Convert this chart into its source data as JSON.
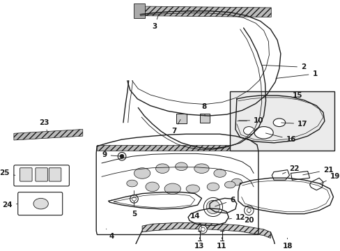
{
  "bg_color": "#ffffff",
  "line_color": "#1a1a1a",
  "figsize": [
    4.89,
    3.6
  ],
  "dpi": 100,
  "gray_fill": "#e8e8e8",
  "hatch_color": "#555555"
}
